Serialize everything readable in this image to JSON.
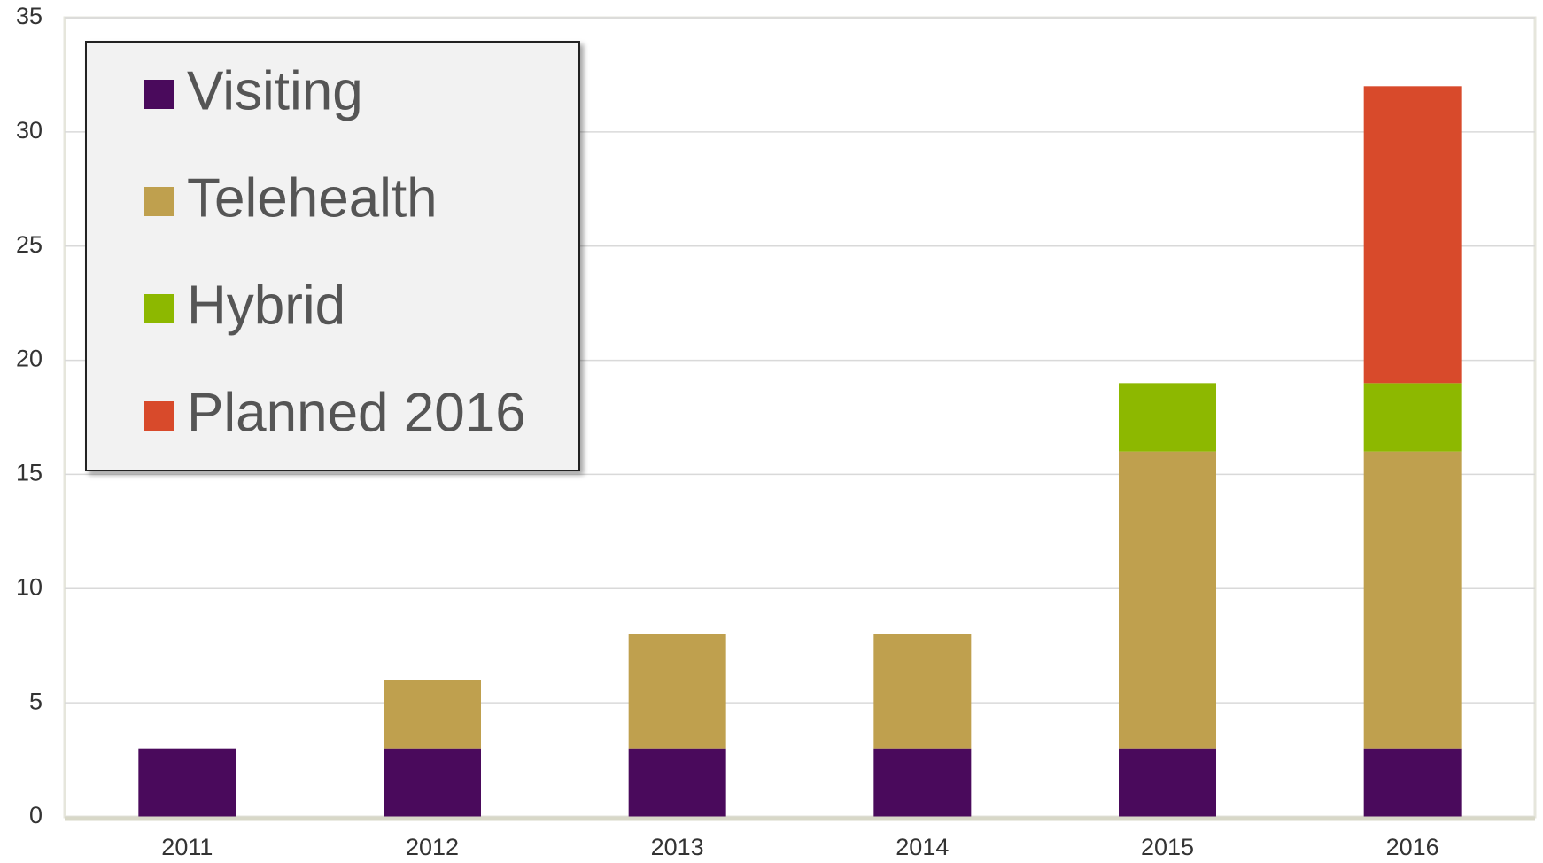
{
  "chart_data": {
    "type": "stacked_bar",
    "categories": [
      "2011",
      "2012",
      "2013",
      "2014",
      "2015",
      "2016"
    ],
    "series": [
      {
        "name": "Visiting",
        "color": "#4a0a5c",
        "values": [
          3,
          3,
          3,
          3,
          3,
          3
        ]
      },
      {
        "name": "Telehealth",
        "color": "#bfa04e",
        "values": [
          0,
          3,
          5,
          5,
          13,
          13
        ]
      },
      {
        "name": "Hybrid",
        "color": "#8db800",
        "values": [
          0,
          0,
          0,
          0,
          3,
          3
        ]
      },
      {
        "name": "Planned 2016",
        "color": "#d84a2b",
        "values": [
          0,
          0,
          0,
          0,
          0,
          13
        ]
      }
    ],
    "ylim": [
      0,
      35
    ],
    "yticks": [
      0,
      5,
      10,
      15,
      20,
      25,
      30,
      35
    ],
    "grid": true,
    "legend": "upper left"
  }
}
